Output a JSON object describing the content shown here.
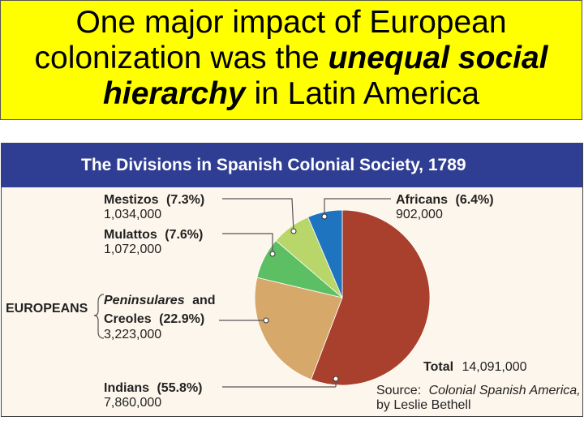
{
  "headline": {
    "part1": "One major impact of European colonization was the ",
    "emph": "unequal social hierarchy",
    "part2": " in Latin America",
    "background": "#ffff00"
  },
  "chart_data": {
    "type": "pie",
    "title": "The Divisions in Spanish Colonial Society, 1789",
    "slices": [
      {
        "key": "indians",
        "name": "Indians",
        "percent_text": "(55.8%)",
        "value": 55.8,
        "count": "7,860,000",
        "color": "#a9402d"
      },
      {
        "key": "peninsulares_creoles",
        "name": "Creoles",
        "percent_text": "(22.9%)",
        "value": 22.9,
        "count": "3,223,000",
        "color": "#d6a96a"
      },
      {
        "key": "mulattos",
        "name": "Mulattos",
        "percent_text": "(7.6%)",
        "value": 7.6,
        "count": "1,072,000",
        "color": "#5cbf63"
      },
      {
        "key": "mestizos",
        "name": "Mestizos",
        "percent_text": "(7.3%)",
        "value": 7.3,
        "count": "1,034,000",
        "color": "#b9d66a"
      },
      {
        "key": "africans",
        "name": "Africans",
        "percent_text": "(6.4%)",
        "value": 6.4,
        "count": "902,000",
        "color": "#1f74c0"
      }
    ],
    "peninsulares_label": "Peninsulares",
    "and_label": "and",
    "group_label": "EUROPEANS",
    "total_label": "Total",
    "total_value": "14,091,000",
    "source_prefix": "Source:",
    "source_title": "Colonial Spanish America,",
    "source_author": "by Leslie Bethell"
  }
}
